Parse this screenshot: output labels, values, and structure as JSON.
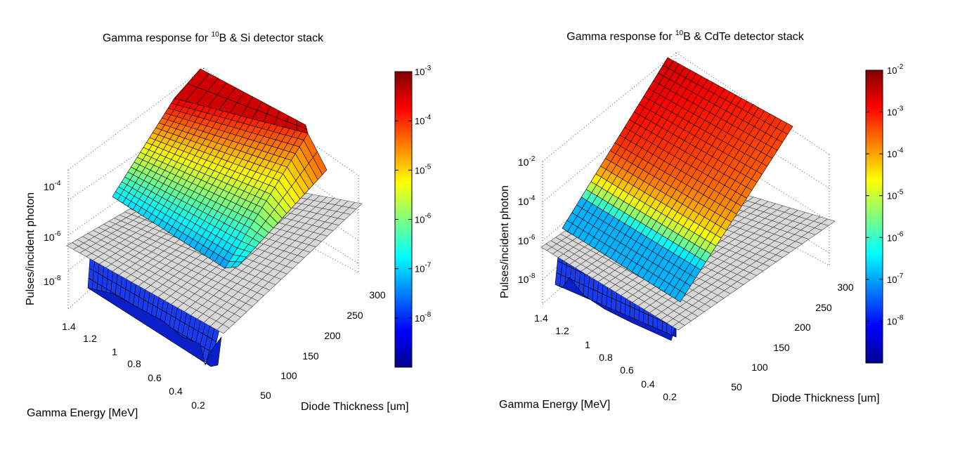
{
  "chart_data": [
    {
      "type": "surface3d",
      "title_parts": [
        "Gamma response for ",
        "10",
        "B & Si detector stack"
      ],
      "xlabel": "Gamma Energy [MeV]",
      "ylabel": "Diode Thickness [um]",
      "zlabel": "Pulses/incident photon",
      "x_range": [
        0.1,
        1.5
      ],
      "y_range": [
        0,
        320
      ],
      "z_range": [
        1e-09,
        0.001
      ],
      "z_scale": "log",
      "x_ticks": [
        "0.2",
        "0.4",
        "0.6",
        "0.8",
        "1",
        "1.2",
        "1.4"
      ],
      "y_ticks": [
        "50",
        "100",
        "150",
        "200",
        "250",
        "300"
      ],
      "z_ticks": [
        {
          "base": "10",
          "exp": "-8"
        },
        {
          "base": "10",
          "exp": "-6"
        },
        {
          "base": "10",
          "exp": "-4"
        }
      ],
      "colorbar_ticks": [
        {
          "base": "10",
          "exp": "-8"
        },
        {
          "base": "10",
          "exp": "-7"
        },
        {
          "base": "10",
          "exp": "-6"
        },
        {
          "base": "10",
          "exp": "-5"
        },
        {
          "base": "10",
          "exp": "-4"
        },
        {
          "base": "10",
          "exp": "-3"
        }
      ],
      "colorbar_range_exp": [
        -9,
        -3
      ],
      "colormap": "jet",
      "plane_value": 1e-06,
      "plane_color": "#d9d9d9",
      "surface_samples": {
        "description_rows": "z (Pulses/incident photon) at sampled energies vs thickness",
        "energy_MeV": [
          0.2,
          0.6,
          1.0,
          1.4
        ],
        "thickness_um": [
          10,
          50,
          100,
          150,
          200,
          250,
          300
        ],
        "z": [
          [
            2e-09,
            3e-07,
            2e-05,
            8e-05,
            0.00015,
            0.00025,
            0.0004
          ],
          [
            1.5e-09,
            2e-07,
            1.5e-05,
            6e-05,
            0.00012,
            0.0002,
            0.0003
          ],
          [
            1e-09,
            1e-07,
            8e-06,
            4e-05,
            9e-05,
            0.00015,
            0.00025
          ],
          [
            2e-09,
            5e-08,
            3e-06,
            2e-05,
            6e-05,
            0.0001,
            0.0002
          ]
        ]
      }
    },
    {
      "type": "surface3d",
      "title_parts": [
        "Gamma response for ",
        "10",
        "B & CdTe detector stack"
      ],
      "xlabel": "Gamma Energy [MeV]",
      "ylabel": "Diode Thickness [um]",
      "zlabel": "Pulses/incident photon",
      "x_range": [
        0.1,
        1.5
      ],
      "y_range": [
        0,
        320
      ],
      "z_range": [
        1e-09,
        0.01
      ],
      "z_scale": "log",
      "x_ticks": [
        "0.2",
        "0.4",
        "0.6",
        "0.8",
        "1",
        "1.2",
        "1.4"
      ],
      "y_ticks": [
        "50",
        "100",
        "150",
        "200",
        "250",
        "300"
      ],
      "z_ticks": [
        {
          "base": "10",
          "exp": "-8"
        },
        {
          "base": "10",
          "exp": "-6"
        },
        {
          "base": "10",
          "exp": "-4"
        },
        {
          "base": "10",
          "exp": "-2"
        }
      ],
      "colorbar_ticks": [
        {
          "base": "10",
          "exp": "-8"
        },
        {
          "base": "10",
          "exp": "-7"
        },
        {
          "base": "10",
          "exp": "-6"
        },
        {
          "base": "10",
          "exp": "-5"
        },
        {
          "base": "10",
          "exp": "-4"
        },
        {
          "base": "10",
          "exp": "-3"
        },
        {
          "base": "10",
          "exp": "-2"
        }
      ],
      "colorbar_range_exp": [
        -9,
        -2
      ],
      "colormap": "jet",
      "plane_value": 1e-06,
      "plane_color": "#d9d9d9",
      "surface_samples": {
        "description_rows": "z (Pulses/incident photon) at sampled energies vs thickness",
        "energy_MeV": [
          0.2,
          0.6,
          1.0,
          1.4
        ],
        "thickness_um": [
          10,
          50,
          100,
          150,
          200,
          250,
          300
        ],
        "z": [
          [
            5e-08,
            5e-05,
            0.0003,
            0.0006,
            0.001,
            0.0015,
            0.002
          ],
          [
            3e-08,
            3e-05,
            0.00025,
            0.0005,
            0.0009,
            0.0013,
            0.0018
          ],
          [
            2e-08,
            1e-05,
            0.00015,
            0.0004,
            0.0007,
            0.0011,
            0.0015
          ],
          [
            1e-08,
            3e-06,
            8e-05,
            0.00025,
            0.0005,
            0.0008,
            0.0012
          ]
        ]
      }
    }
  ]
}
